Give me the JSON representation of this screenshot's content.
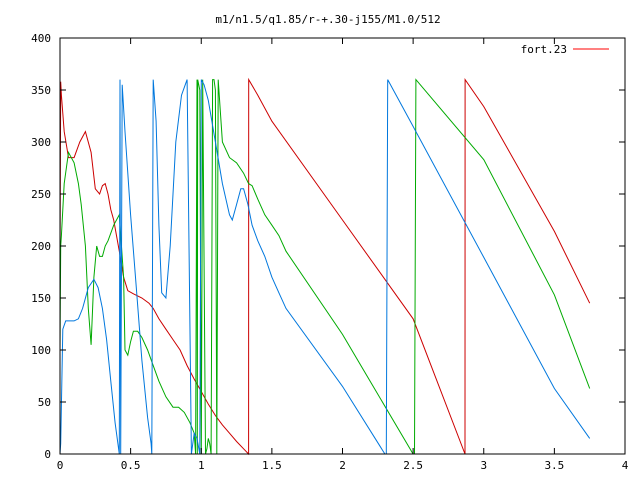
{
  "chart_data": {
    "type": "line",
    "title": "m1/n1.5/q1.85/r-+.30-j155/M1.0/512",
    "xlabel": "",
    "ylabel": "",
    "xlim": [
      0,
      4
    ],
    "ylim": [
      0,
      400
    ],
    "x_ticks": [
      {
        "v": 0,
        "label": "0"
      },
      {
        "v": 0.5,
        "label": "0.5"
      },
      {
        "v": 1,
        "label": "1"
      },
      {
        "v": 1.5,
        "label": "1.5"
      },
      {
        "v": 2,
        "label": "2"
      },
      {
        "v": 2.5,
        "label": "2.5"
      },
      {
        "v": 3,
        "label": "3"
      },
      {
        "v": 3.5,
        "label": "3.5"
      },
      {
        "v": 4,
        "label": "4"
      }
    ],
    "y_ticks": [
      {
        "v": 0,
        "label": "0"
      },
      {
        "v": 50,
        "label": "50"
      },
      {
        "v": 100,
        "label": "100"
      },
      {
        "v": 150,
        "label": "150"
      },
      {
        "v": 200,
        "label": "200"
      },
      {
        "v": 250,
        "label": "250"
      },
      {
        "v": 300,
        "label": "300"
      },
      {
        "v": 350,
        "label": "350"
      },
      {
        "v": 400,
        "label": "400"
      }
    ],
    "grid": false,
    "legend_position": "top-right",
    "legend": [
      {
        "label": "fort.23",
        "color": "#ff0000"
      }
    ],
    "series": [
      {
        "color": "#cc0000",
        "x": [
          0,
          0.005,
          0.01,
          0.03,
          0.06,
          0.1,
          0.14,
          0.18,
          0.22,
          0.25,
          0.28,
          0.3,
          0.32,
          0.34,
          0.36,
          0.38,
          0.4,
          0.42,
          0.45,
          0.48,
          0.52,
          0.58,
          0.63,
          0.66,
          0.7,
          0.75,
          0.8,
          0.85,
          0.9,
          0.95,
          1.0,
          1.05,
          1.1,
          1.15,
          1.2,
          1.25,
          1.3,
          1.335,
          1.336,
          1.4,
          1.5,
          2.0,
          2.5,
          2.867,
          2.868,
          3.0,
          3.5,
          3.75
        ],
        "y": [
          180,
          358,
          345,
          310,
          285,
          285,
          300,
          310,
          290,
          255,
          250,
          258,
          260,
          250,
          235,
          225,
          210,
          195,
          170,
          157,
          154,
          150,
          145,
          140,
          130,
          120,
          110,
          100,
          85,
          72,
          60,
          48,
          37,
          28,
          20,
          12,
          5,
          0,
          360,
          345,
          320,
          225,
          130,
          0,
          360,
          334,
          214,
          145
        ]
      },
      {
        "color": "#00aa00",
        "x": [
          0,
          0.005,
          0.01,
          0.03,
          0.06,
          0.1,
          0.13,
          0.15,
          0.18,
          0.2,
          0.22,
          0.24,
          0.26,
          0.28,
          0.3,
          0.32,
          0.34,
          0.38,
          0.42,
          0.45,
          0.46,
          0.48,
          0.5,
          0.52,
          0.55,
          0.58,
          0.62,
          0.66,
          0.7,
          0.75,
          0.8,
          0.84,
          0.88,
          0.92,
          0.95,
          0.96,
          0.97,
          0.972,
          0.975,
          0.99,
          1.0,
          1.01,
          1.03,
          1.04,
          1.05,
          1.06,
          1.07,
          1.08,
          1.09,
          1.1,
          1.11,
          1.12,
          1.15,
          1.2,
          1.25,
          1.3,
          1.335,
          1.36,
          1.4,
          1.45,
          1.5,
          1.55,
          1.6,
          2.0,
          2.5,
          2.51,
          2.52,
          3.0,
          3.5,
          3.75
        ],
        "y": [
          100,
          200,
          210,
          260,
          290,
          280,
          260,
          240,
          200,
          140,
          105,
          170,
          200,
          190,
          190,
          200,
          205,
          220,
          230,
          170,
          100,
          95,
          108,
          118,
          118,
          112,
          100,
          85,
          70,
          55,
          45,
          45,
          40,
          30,
          20,
          0,
          360,
          0,
          360,
          350,
          0,
          360,
          0,
          5,
          15,
          10,
          0,
          360,
          360,
          350,
          0,
          360,
          300,
          285,
          280,
          270,
          260,
          258,
          245,
          230,
          220,
          210,
          195,
          115,
          0,
          0,
          360,
          283,
          153,
          63
        ]
      },
      {
        "color": "#0077dd",
        "x": [
          0,
          0.005,
          0.02,
          0.04,
          0.06,
          0.08,
          0.1,
          0.13,
          0.16,
          0.2,
          0.24,
          0.27,
          0.3,
          0.33,
          0.36,
          0.39,
          0.41,
          0.42,
          0.425,
          0.43,
          0.44,
          0.46,
          0.5,
          0.54,
          0.58,
          0.62,
          0.645,
          0.65,
          0.66,
          0.68,
          0.7,
          0.72,
          0.75,
          0.78,
          0.82,
          0.86,
          0.9,
          0.93,
          0.94,
          0.95,
          0.97,
          0.99,
          1.0,
          1.02,
          1.05,
          1.1,
          1.15,
          1.2,
          1.22,
          1.25,
          1.28,
          1.3,
          1.33,
          1.36,
          1.4,
          1.45,
          1.5,
          1.55,
          1.6,
          2.0,
          2.3,
          2.31,
          2.32,
          2.5,
          3.0,
          3.5,
          3.75
        ],
        "y": [
          0,
          10,
          120,
          128,
          128,
          128,
          128,
          130,
          140,
          160,
          168,
          160,
          140,
          110,
          70,
          30,
          10,
          0,
          360,
          0,
          355,
          310,
          230,
          160,
          90,
          35,
          10,
          0,
          360,
          320,
          220,
          155,
          150,
          200,
          300,
          345,
          360,
          0,
          10,
          20,
          15,
          0,
          360,
          355,
          340,
          300,
          260,
          230,
          225,
          240,
          255,
          255,
          240,
          220,
          205,
          190,
          170,
          155,
          140,
          65,
          0,
          0,
          360,
          315,
          189,
          63,
          15
        ]
      }
    ]
  }
}
